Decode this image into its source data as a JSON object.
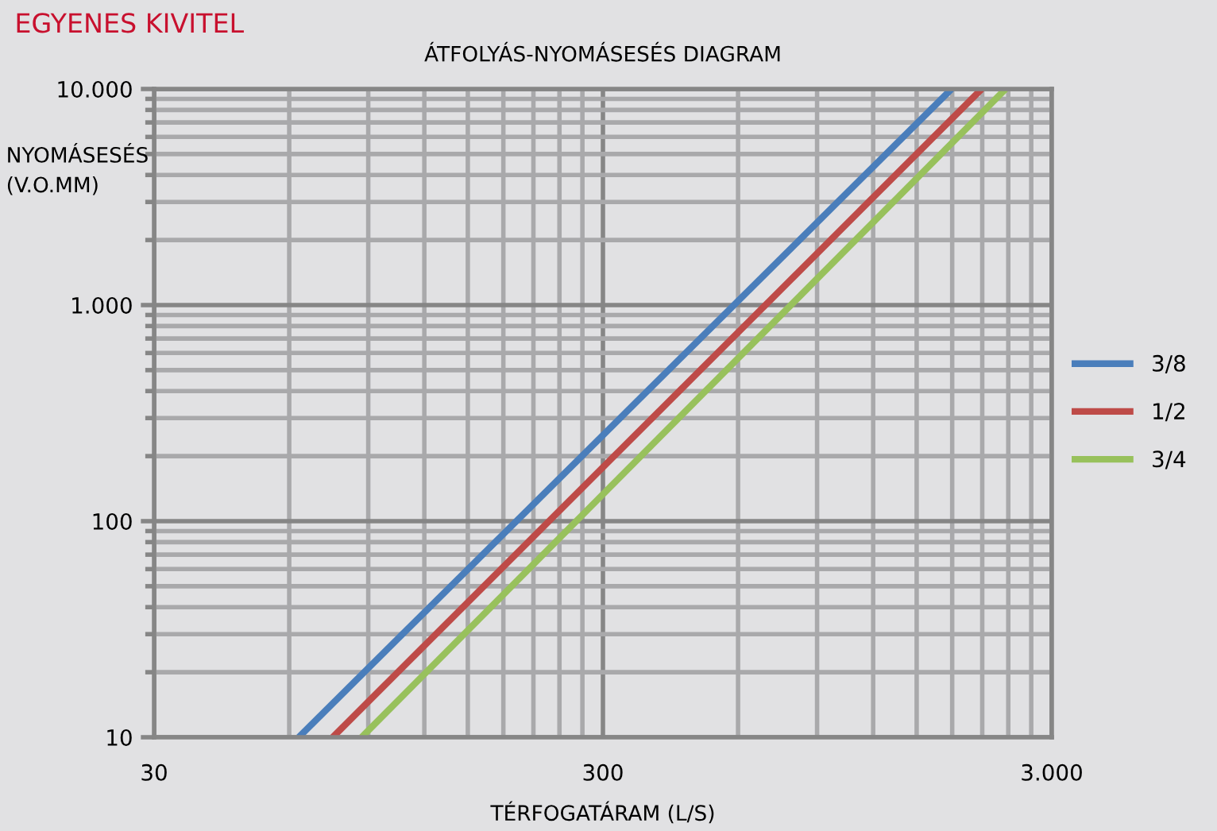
{
  "chart_data": {
    "type": "line",
    "title": "EGYENES KIVITEL",
    "subtitle": "ÁTFOLYÁS-NYOMÁSESÉS DIAGRAM",
    "xlabel": "TÉRFOGATÁRAM (L/S)",
    "ylabel": "NYOMÁSESÉS\n(V.O.MM)",
    "log": "xy",
    "grid": true,
    "legend": "right",
    "marker": "none",
    "line_style": "solid",
    "xlim": [
      30,
      3000
    ],
    "ylim": [
      10,
      10000
    ],
    "xticks": [
      30,
      300,
      {
        "value": 3000,
        "label": "3.000"
      }
    ],
    "yticks": [
      10,
      100,
      {
        "value": 1000,
        "label": "1.000"
      },
      {
        "value": 10000,
        "label": "10.000"
      }
    ],
    "series": [
      {
        "name": "3/8",
        "color": "#4a7ebb",
        "x": [
          63,
          1794
        ],
        "values": [
          10,
          10000
        ]
      },
      {
        "name": "1/2",
        "color": "#be4b48",
        "x": [
          75,
          2094
        ],
        "values": [
          10,
          10000
        ]
      },
      {
        "name": "3/4",
        "color": "#98c15c",
        "x": [
          87,
          2367
        ],
        "values": [
          10,
          10000
        ]
      }
    ]
  }
}
